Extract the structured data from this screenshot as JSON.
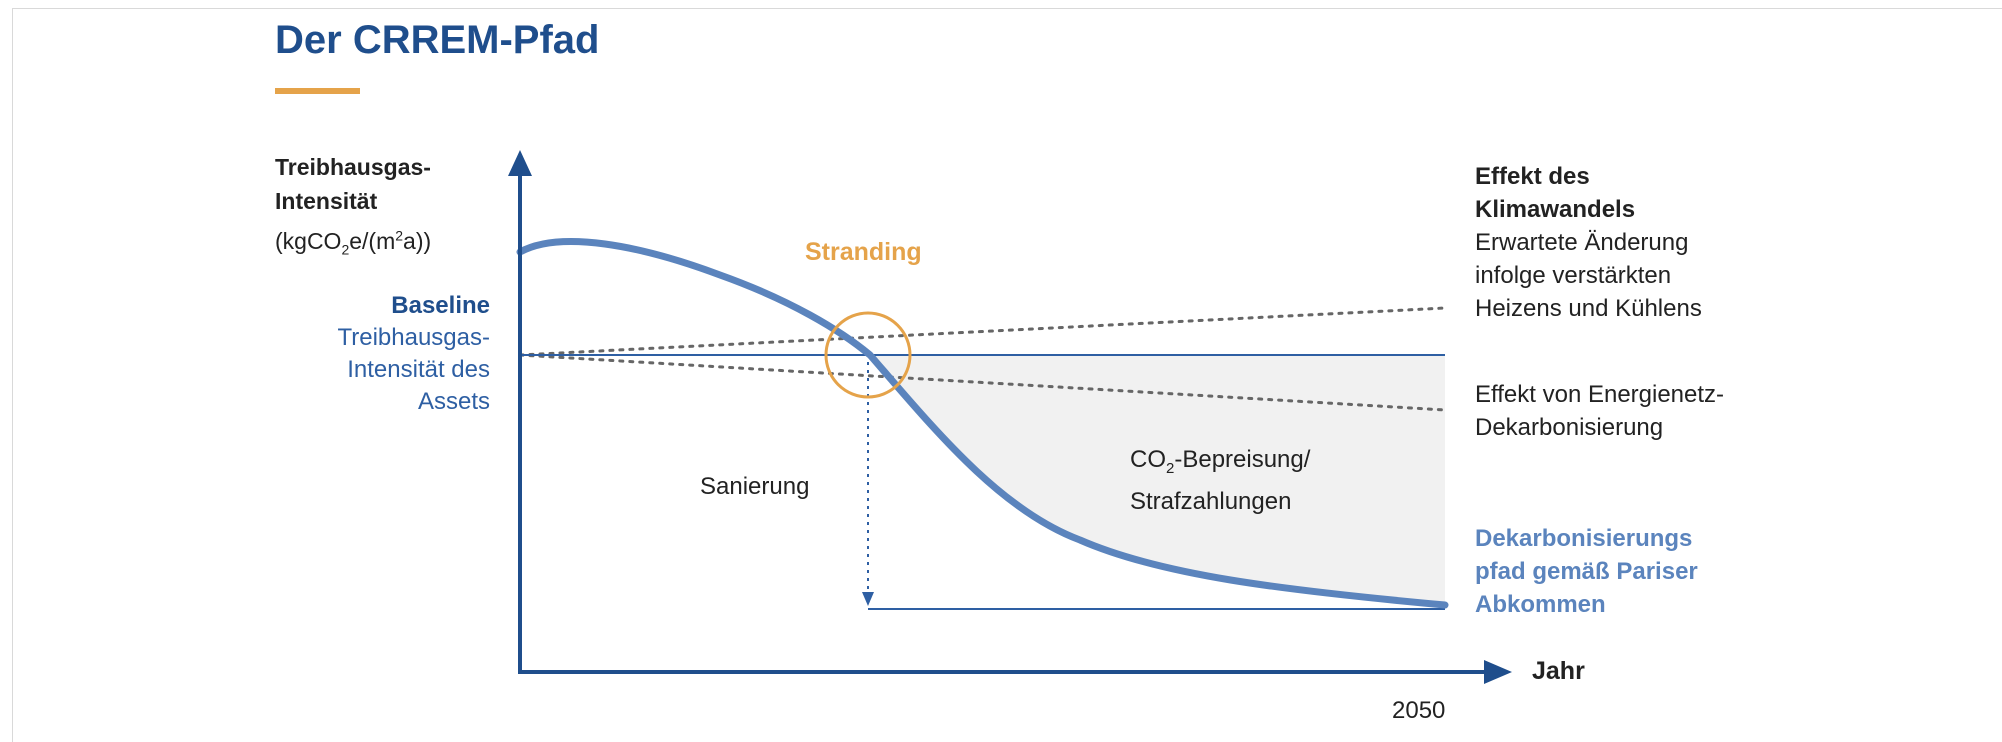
{
  "title": "Der CRREM-Pfad",
  "y_axis": {
    "line1": "Treibhausgas-",
    "line2": "Intensität",
    "unit_pre": "(kgCO",
    "unit_sub": "2",
    "unit_mid": "e/(m",
    "unit_sup": "2",
    "unit_post": "a))"
  },
  "baseline": {
    "heading": "Baseline",
    "line1": "Treibhausgas-",
    "line2": "Intensität des",
    "line3": "Assets"
  },
  "stranding_label": "Stranding",
  "sanierung_label": "Sanierung",
  "co2_label": {
    "pre": "CO",
    "sub": "2",
    "post": "-Bepreisung/",
    "line2": "Strafzahlungen"
  },
  "klimawandel": {
    "heading1": "Effekt des",
    "heading2": "Klimawandels",
    "line1": "Erwartete Änderung",
    "line2": "infolge verstärkten",
    "line3": "Heizens und Kühlens"
  },
  "energienetz": {
    "line1": "Effekt von Energienetz-",
    "line2": "Dekarbonisierung"
  },
  "dekarbonisierung": {
    "line1": "Dekarbonisierungs",
    "line2": "pfad gemäß Pariser",
    "line3": "Abkommen"
  },
  "x_axis_label": "Jahr",
  "x_tick": "2050",
  "colors": {
    "title": "#1f4e8c",
    "accent_orange": "#e5a34a",
    "axis": "#1f4e8c",
    "path_curve": "#5b84bd",
    "baseline_line": "#2e5fa3",
    "dotted": "#666666",
    "shade": "#f1f1f1"
  }
}
